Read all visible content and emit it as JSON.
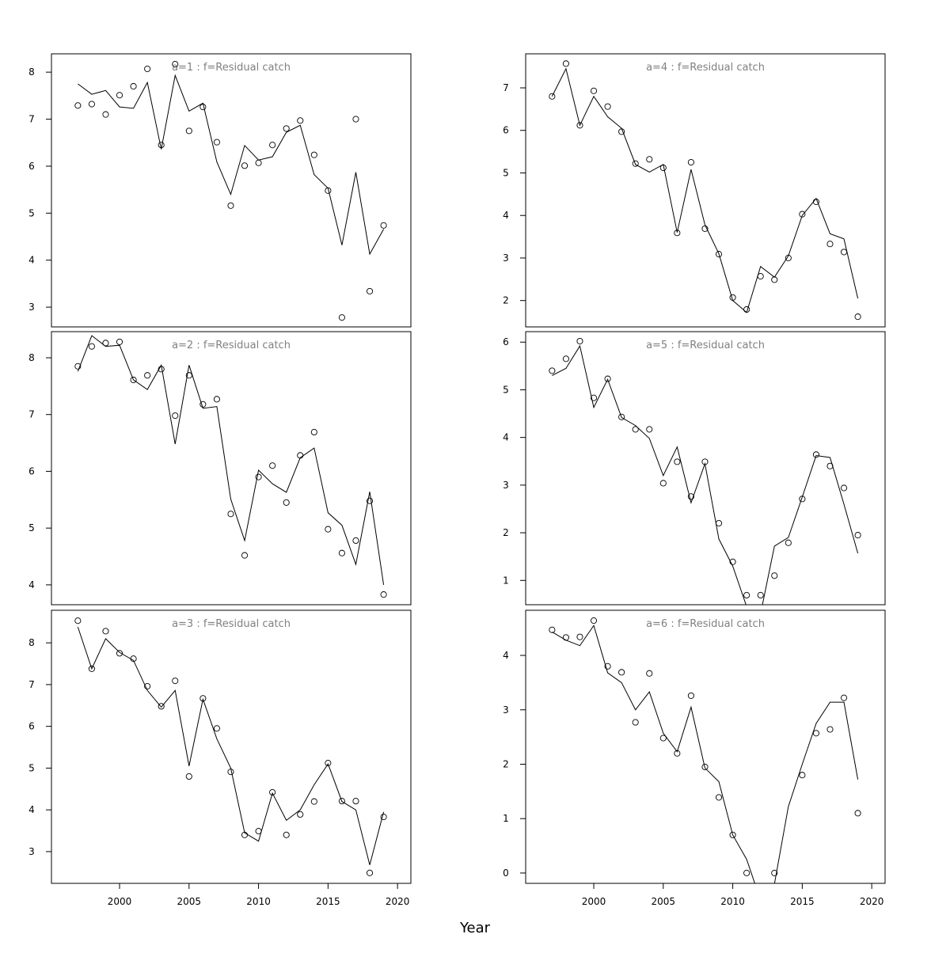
{
  "chart_data": [
    {
      "type": "line",
      "title": "a=1  :  f=Residual catch",
      "x": [
        1997,
        1998,
        1999,
        2000,
        2001,
        2002,
        2003,
        2004,
        2005,
        2006,
        2007,
        2008,
        2009,
        2010,
        2011,
        2012,
        2013,
        2014,
        2015,
        2016,
        2017,
        2018,
        2019
      ],
      "xlim": [
        1995.1,
        2020.96
      ],
      "ylim": [
        2.58,
        8.39
      ],
      "yticks": [
        3,
        4,
        5,
        6,
        7,
        8
      ],
      "series": [
        {
          "mode": "points",
          "color": "#000000",
          "values": [
            7.29,
            7.32,
            7.1,
            7.51,
            7.7,
            8.07,
            6.45,
            8.17,
            6.75,
            7.26,
            6.51,
            5.16,
            6.01,
            6.07,
            6.45,
            6.8,
            6.97,
            6.24,
            5.48,
            2.78,
            7.0,
            3.34,
            4.74
          ]
        },
        {
          "mode": "line",
          "color": "#000000",
          "values": [
            7.75,
            7.53,
            7.61,
            7.26,
            7.23,
            7.78,
            6.36,
            7.93,
            7.17,
            7.34,
            6.09,
            5.4,
            6.44,
            6.13,
            6.2,
            6.72,
            6.87,
            5.82,
            5.53,
            4.32,
            5.87,
            4.13,
            4.66
          ]
        }
      ]
    },
    {
      "type": "line",
      "title": "a=2  :  f=Residual catch",
      "x": [
        1997,
        1998,
        1999,
        2000,
        2001,
        2002,
        2003,
        2004,
        2005,
        2006,
        2007,
        2008,
        2009,
        2010,
        2011,
        2012,
        2013,
        2014,
        2015,
        2016,
        2017,
        2018,
        2019
      ],
      "xlim": [
        1995.1,
        2020.96
      ],
      "ylim": [
        3.65,
        8.46
      ],
      "yticks": [
        4,
        5,
        6,
        7,
        8
      ],
      "series": [
        {
          "mode": "points",
          "color": "#000000",
          "values": [
            7.85,
            8.2,
            8.26,
            8.28,
            7.61,
            7.69,
            7.8,
            6.98,
            7.69,
            7.18,
            7.27,
            5.25,
            4.52,
            5.9,
            6.1,
            5.45,
            6.28,
            6.69,
            4.98,
            4.56,
            4.78,
            5.48,
            3.83
          ]
        },
        {
          "mode": "line",
          "color": "#000000",
          "values": [
            7.76,
            8.39,
            8.2,
            8.22,
            7.61,
            7.44,
            7.87,
            6.48,
            7.87,
            7.11,
            7.14,
            5.51,
            4.78,
            6.02,
            5.78,
            5.63,
            6.24,
            6.41,
            5.27,
            5.05,
            4.36,
            5.64,
            4.0
          ]
        }
      ]
    },
    {
      "type": "line",
      "title": "a=3  :  f=Residual catch",
      "x": [
        1997,
        1998,
        1999,
        2000,
        2001,
        2002,
        2003,
        2004,
        2005,
        2006,
        2007,
        2008,
        2009,
        2010,
        2011,
        2012,
        2013,
        2014,
        2015,
        2016,
        2017,
        2018,
        2019
      ],
      "xlim": [
        1995.1,
        2020.96
      ],
      "ylim": [
        2.24,
        8.78
      ],
      "yticks": [
        3,
        4,
        5,
        6,
        7,
        8
      ],
      "xticks": [
        2000,
        2005,
        2010,
        2015,
        2020
      ],
      "series": [
        {
          "mode": "points",
          "color": "#000000",
          "values": [
            8.53,
            7.38,
            8.28,
            7.75,
            7.62,
            6.96,
            6.48,
            7.09,
            4.8,
            6.67,
            5.95,
            4.91,
            3.4,
            3.49,
            4.42,
            3.4,
            3.89,
            4.2,
            5.12,
            4.21,
            4.21,
            2.49,
            3.83
          ]
        },
        {
          "mode": "line",
          "color": "#000000",
          "values": [
            8.38,
            7.38,
            8.1,
            7.77,
            7.58,
            6.86,
            6.46,
            6.86,
            5.05,
            6.65,
            5.7,
            5.0,
            3.45,
            3.25,
            4.4,
            3.75,
            4.0,
            4.6,
            5.1,
            4.2,
            4.0,
            2.68,
            3.95
          ]
        }
      ]
    },
    {
      "type": "line",
      "title": "a=4  :  f=Residual catch",
      "x": [
        1997,
        1998,
        1999,
        2000,
        2001,
        2002,
        2003,
        2004,
        2005,
        2006,
        2007,
        2008,
        2009,
        2010,
        2011,
        2012,
        2013,
        2014,
        2015,
        2016,
        2017,
        2018,
        2019
      ],
      "xlim": [
        1995.1,
        2020.96
      ],
      "ylim": [
        1.38,
        7.8
      ],
      "yticks": [
        2,
        3,
        4,
        5,
        6,
        7
      ],
      "series": [
        {
          "mode": "points",
          "color": "#000000",
          "values": [
            6.8,
            7.57,
            6.12,
            6.93,
            6.56,
            5.97,
            5.22,
            5.32,
            5.12,
            3.59,
            5.25,
            3.69,
            3.09,
            2.07,
            1.79,
            2.57,
            2.49,
            3.0,
            4.03,
            4.32,
            3.33,
            3.14,
            1.62
          ]
        },
        {
          "mode": "line",
          "color": "#000000",
          "values": [
            6.8,
            7.45,
            6.12,
            6.8,
            6.32,
            6.05,
            5.2,
            5.02,
            5.2,
            3.6,
            5.08,
            3.78,
            3.1,
            2.0,
            1.72,
            2.8,
            2.55,
            3.05,
            4.0,
            4.4,
            3.57,
            3.45,
            2.05
          ]
        }
      ]
    },
    {
      "type": "line",
      "title": "a=5  :  f=Residual catch",
      "x": [
        1997,
        1998,
        1999,
        2000,
        2001,
        2002,
        2003,
        2004,
        2005,
        2006,
        2007,
        2008,
        2009,
        2010,
        2011,
        2012,
        2013,
        2014,
        2015,
        2016,
        2017,
        2018,
        2019
      ],
      "xlim": [
        1995.1,
        2020.96
      ],
      "ylim": [
        0.49,
        6.22
      ],
      "yticks": [
        1,
        2,
        3,
        4,
        5,
        6
      ],
      "series": [
        {
          "mode": "points",
          "color": "#000000",
          "values": [
            5.4,
            5.65,
            6.02,
            4.83,
            5.23,
            4.43,
            4.17,
            4.17,
            3.04,
            3.49,
            2.76,
            3.49,
            2.2,
            1.39,
            0.69,
            0.69,
            1.1,
            1.79,
            2.71,
            3.64,
            3.4,
            2.94,
            1.95
          ]
        },
        {
          "mode": "line",
          "color": "#000000",
          "values": [
            5.3,
            5.45,
            5.92,
            4.63,
            5.22,
            4.42,
            4.25,
            3.98,
            3.2,
            3.8,
            2.63,
            3.45,
            1.87,
            1.3,
            0.45,
            0.3,
            1.72,
            1.9,
            2.75,
            3.62,
            3.58,
            2.6,
            1.57
          ]
        }
      ]
    },
    {
      "type": "line",
      "title": "a=6  :  f=Residual catch",
      "x": [
        1997,
        1998,
        1999,
        2000,
        2001,
        2002,
        2003,
        2004,
        2005,
        2006,
        2007,
        2008,
        2009,
        2010,
        2011,
        2012,
        2013,
        2014,
        2015,
        2016,
        2017,
        2018,
        2019
      ],
      "xlim": [
        1995.1,
        2020.96
      ],
      "ylim": [
        -0.19,
        4.83
      ],
      "yticks": [
        0,
        1,
        2,
        3,
        4
      ],
      "xticks": [
        2000,
        2005,
        2010,
        2015,
        2020
      ],
      "series": [
        {
          "mode": "points",
          "color": "#000000",
          "values": [
            4.47,
            4.33,
            4.34,
            4.64,
            3.8,
            3.69,
            2.77,
            3.67,
            2.48,
            2.2,
            3.26,
            1.95,
            1.39,
            0.7,
            0.0,
            null,
            0.0,
            null,
            1.8,
            2.57,
            2.64,
            3.22,
            1.1
          ]
        },
        {
          "mode": "line",
          "color": "#000000",
          "values": [
            4.43,
            4.28,
            4.18,
            4.55,
            3.68,
            3.5,
            3.0,
            3.33,
            2.57,
            2.23,
            3.05,
            1.93,
            1.68,
            0.7,
            0.25,
            -0.5,
            -0.2,
            1.22,
            2.0,
            2.75,
            3.14,
            3.14,
            1.72
          ]
        }
      ]
    }
  ],
  "x_label": "Year"
}
